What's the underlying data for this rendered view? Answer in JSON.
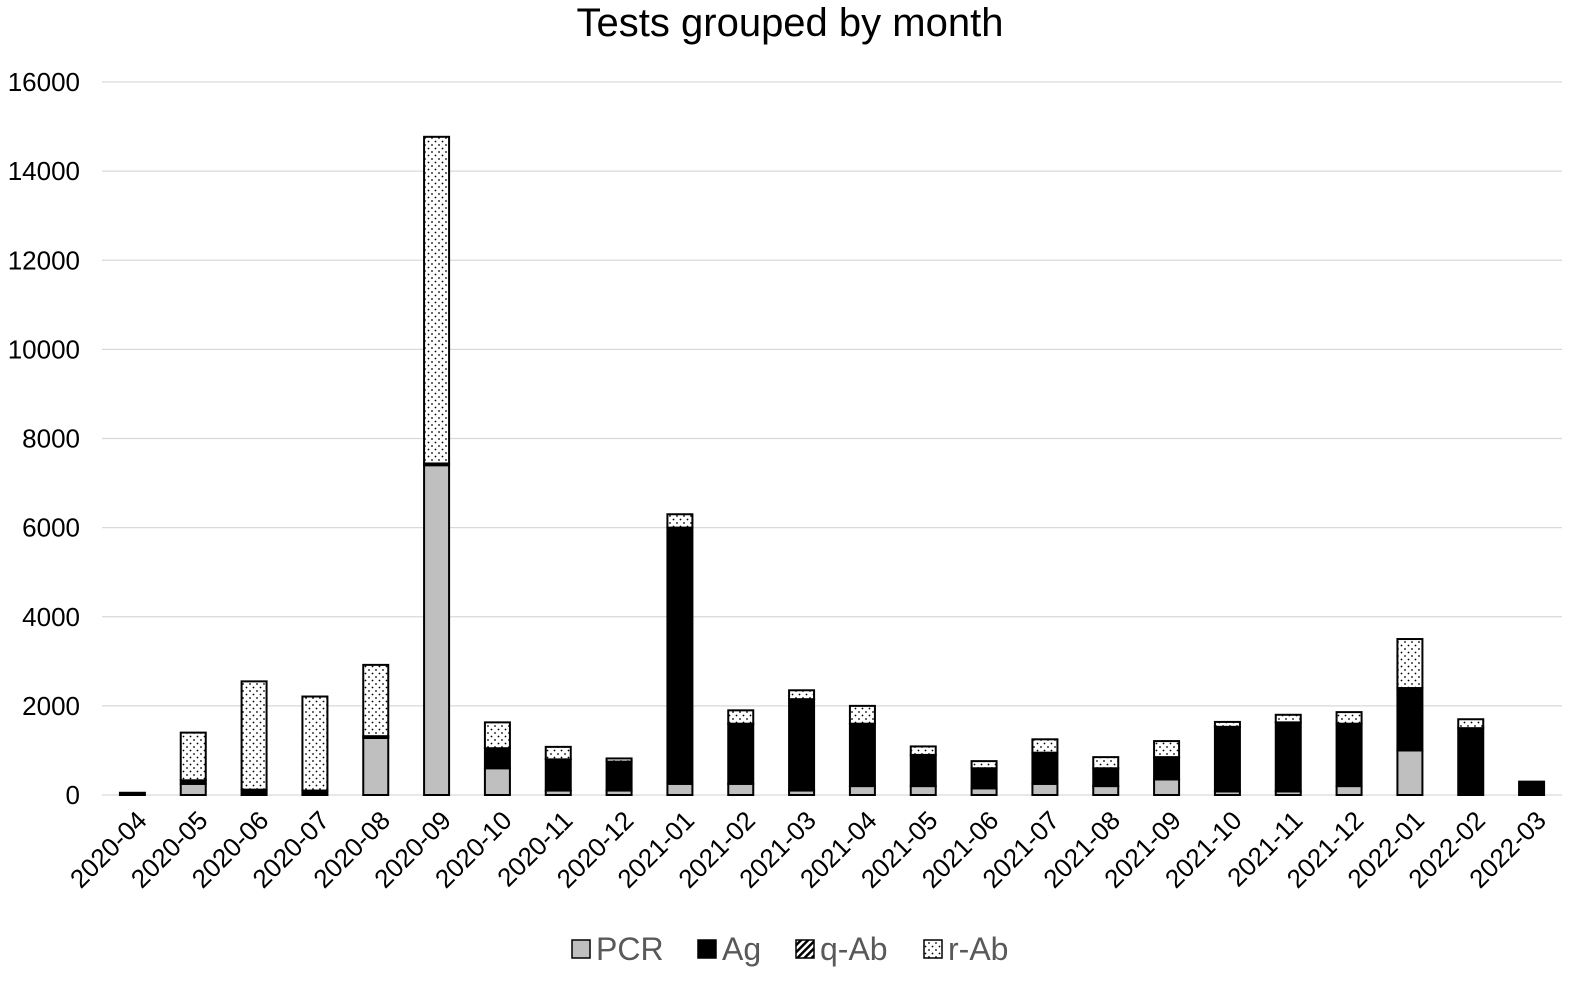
{
  "chart_data": {
    "type": "bar",
    "stacked": true,
    "title": "Tests grouped by month",
    "xlabel": "",
    "ylabel": "",
    "ylim": [
      0,
      16000
    ],
    "yticks": [
      0,
      2000,
      4000,
      6000,
      8000,
      10000,
      12000,
      14000,
      16000
    ],
    "grid": true,
    "legend_position": "bottom",
    "categories": [
      "2020-04",
      "2020-05",
      "2020-06",
      "2020-07",
      "2020-08",
      "2020-09",
      "2020-10",
      "2020-11",
      "2020-12",
      "2021-01",
      "2021-02",
      "2021-03",
      "2021-04",
      "2021-05",
      "2021-06",
      "2021-07",
      "2021-08",
      "2021-09",
      "2021-10",
      "2021-11",
      "2021-12",
      "2022-01",
      "2022-02",
      "2022-03"
    ],
    "series": [
      {
        "name": "PCR",
        "color": "#bfbfbf",
        "pattern": "solid-gray",
        "values": [
          0,
          250,
          0,
          0,
          1280,
          7400,
          600,
          100,
          100,
          250,
          250,
          100,
          200,
          200,
          150,
          250,
          200,
          350,
          80,
          80,
          200,
          1000,
          0,
          0
        ]
      },
      {
        "name": "Ag",
        "color": "#000000",
        "pattern": "solid-black",
        "values": [
          50,
          80,
          120,
          100,
          40,
          40,
          450,
          700,
          650,
          5750,
          1350,
          2050,
          1400,
          700,
          450,
          700,
          400,
          500,
          1450,
          1550,
          1400,
          1400,
          1500,
          300
        ]
      },
      {
        "name": "q-Ab",
        "color": "#000000",
        "pattern": "diagonal-hatch",
        "values": [
          0,
          0,
          0,
          0,
          0,
          0,
          0,
          0,
          0,
          0,
          0,
          0,
          0,
          0,
          0,
          0,
          0,
          0,
          0,
          0,
          0,
          0,
          0,
          0
        ]
      },
      {
        "name": "r-Ab",
        "color": "#ffffff",
        "pattern": "dots",
        "values": [
          0,
          1070,
          2430,
          2110,
          1600,
          7330,
          580,
          280,
          70,
          300,
          300,
          200,
          400,
          190,
          160,
          300,
          250,
          360,
          110,
          170,
          260,
          1100,
          200,
          0
        ]
      }
    ]
  }
}
